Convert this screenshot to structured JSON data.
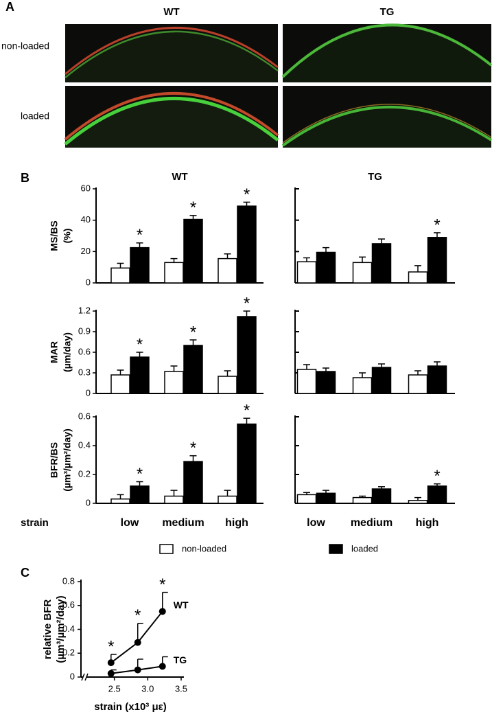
{
  "panel_labels": {
    "a": "A",
    "b": "B",
    "c": "C"
  },
  "panel_a": {
    "columns": [
      "WT",
      "TG"
    ],
    "rows": [
      "non-loaded",
      "loaded"
    ]
  },
  "chart_data": [
    {
      "type": "bar",
      "title": "WT",
      "ylabel": [
        "MS/BS",
        "(%)"
      ],
      "categories": [
        "low",
        "medium",
        "high"
      ],
      "show_categories": false,
      "ylim": [
        0,
        60
      ],
      "yticks": [
        0,
        20,
        40,
        60
      ],
      "tick_labels": true,
      "series": [
        {
          "name": "non-loaded",
          "color": "#ffffff",
          "values": [
            9.5,
            13,
            15.5
          ],
          "errors": [
            3,
            2.5,
            3
          ]
        },
        {
          "name": "loaded",
          "color": "#000000",
          "values": [
            22.5,
            40.5,
            49
          ],
          "errors": [
            3,
            2.5,
            2.5
          ],
          "markers": [
            "*",
            "*",
            "*"
          ]
        }
      ]
    },
    {
      "type": "bar",
      "title": "TG",
      "categories": [
        "low",
        "medium",
        "high"
      ],
      "show_categories": false,
      "ylim": [
        0,
        60
      ],
      "yticks": [
        0,
        20,
        40,
        60
      ],
      "tick_labels": false,
      "series": [
        {
          "name": "non-loaded",
          "color": "#ffffff",
          "values": [
            13.5,
            13,
            7
          ],
          "errors": [
            2.5,
            3.5,
            4
          ]
        },
        {
          "name": "loaded",
          "color": "#000000",
          "values": [
            19.5,
            25,
            29
          ],
          "errors": [
            3,
            3,
            3
          ],
          "markers": [
            null,
            null,
            "*"
          ]
        }
      ]
    },
    {
      "type": "bar",
      "ylabel": [
        "MAR",
        "(µm/day)"
      ],
      "categories": [
        "low",
        "medium",
        "high"
      ],
      "show_categories": false,
      "ylim": [
        0,
        1.2
      ],
      "yticks": [
        0,
        0.3,
        0.6,
        0.9,
        1.2
      ],
      "tick_labels": true,
      "series": [
        {
          "name": "non-loaded",
          "color": "#ffffff",
          "values": [
            0.27,
            0.32,
            0.25
          ],
          "errors": [
            0.07,
            0.08,
            0.08
          ]
        },
        {
          "name": "loaded",
          "color": "#000000",
          "values": [
            0.53,
            0.7,
            1.12
          ],
          "errors": [
            0.07,
            0.08,
            0.08
          ],
          "markers": [
            "*",
            "*",
            "*"
          ]
        }
      ]
    },
    {
      "type": "bar",
      "categories": [
        "low",
        "medium",
        "high"
      ],
      "show_categories": false,
      "ylim": [
        0,
        1.2
      ],
      "yticks": [
        0,
        0.3,
        0.6,
        0.9,
        1.2
      ],
      "tick_labels": false,
      "series": [
        {
          "name": "non-loaded",
          "color": "#ffffff",
          "values": [
            0.35,
            0.23,
            0.27
          ],
          "errors": [
            0.07,
            0.07,
            0.06
          ]
        },
        {
          "name": "loaded",
          "color": "#000000",
          "values": [
            0.32,
            0.38,
            0.4
          ],
          "errors": [
            0.05,
            0.05,
            0.06
          ]
        }
      ]
    },
    {
      "type": "bar",
      "ylabel": [
        "BFR/BS",
        "(µm³/µm²/day)"
      ],
      "xlabel": "strain",
      "categories": [
        "low",
        "medium",
        "high"
      ],
      "show_categories": true,
      "ylim": [
        0,
        0.6
      ],
      "yticks": [
        0,
        0.2,
        0.4,
        0.6
      ],
      "tick_labels": true,
      "series": [
        {
          "name": "non-loaded",
          "color": "#ffffff",
          "values": [
            0.03,
            0.05,
            0.05
          ],
          "errors": [
            0.03,
            0.04,
            0.04
          ]
        },
        {
          "name": "loaded",
          "color": "#000000",
          "values": [
            0.12,
            0.29,
            0.55
          ],
          "errors": [
            0.03,
            0.04,
            0.04
          ],
          "markers": [
            "*",
            "*",
            "*"
          ]
        }
      ]
    },
    {
      "type": "bar",
      "categories": [
        "low",
        "medium",
        "high"
      ],
      "show_categories": true,
      "legend": "bottom",
      "ylim": [
        0,
        0.6
      ],
      "yticks": [
        0,
        0.2,
        0.4,
        0.6
      ],
      "tick_labels": false,
      "series": [
        {
          "name": "non-loaded",
          "color": "#ffffff",
          "values": [
            0.06,
            0.04,
            0.02
          ],
          "errors": [
            0.015,
            0.01,
            0.02
          ]
        },
        {
          "name": "loaded",
          "color": "#000000",
          "values": [
            0.07,
            0.1,
            0.12
          ],
          "errors": [
            0.02,
            0.015,
            0.015
          ],
          "markers": [
            null,
            null,
            "*"
          ]
        }
      ]
    },
    {
      "type": "line",
      "ylabel": [
        "relative BFR",
        "(µm³/µm²/day)"
      ],
      "xlabel": "strain (x10³ με)",
      "xlim": [
        2,
        3.5
      ],
      "xticks": [
        2.5,
        {
          "value": 3,
          "label": "3.0"
        },
        3.5
      ],
      "ylim": [
        0,
        0.8
      ],
      "yticks": [
        0,
        0.2,
        0.4,
        0.6,
        0.8
      ],
      "series": [
        {
          "name": "WT",
          "color": "#000000",
          "x": [
            2.45,
            2.85,
            3.22
          ],
          "values": [
            0.12,
            0.29,
            0.55
          ],
          "errors": [
            0.07,
            0.16,
            0.16
          ],
          "markers": [
            "*",
            "*",
            "*"
          ]
        },
        {
          "name": "TG",
          "color": "#000000",
          "x": [
            2.45,
            2.85,
            3.22
          ],
          "values": [
            0.03,
            0.06,
            0.09
          ],
          "errors": [
            0.03,
            0.09,
            0.08
          ]
        }
      ]
    }
  ]
}
